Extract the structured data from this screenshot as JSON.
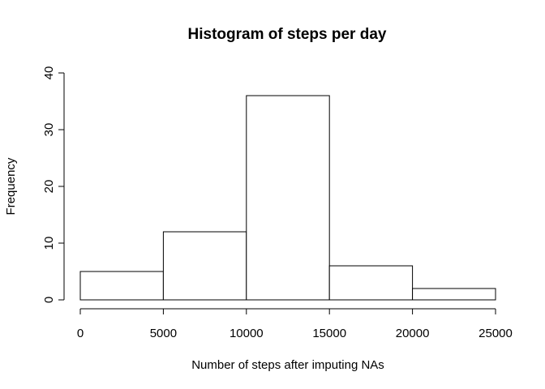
{
  "chart_data": {
    "type": "bar",
    "histogram": true,
    "title": "Histogram of steps per day",
    "xlabel": "Number of steps after imputing NAs",
    "ylabel": "Frequency",
    "bins": [
      {
        "start": 0,
        "end": 5000,
        "count": 5
      },
      {
        "start": 5000,
        "end": 10000,
        "count": 12
      },
      {
        "start": 10000,
        "end": 15000,
        "count": 36
      },
      {
        "start": 15000,
        "end": 20000,
        "count": 6
      },
      {
        "start": 20000,
        "end": 25000,
        "count": 2
      }
    ],
    "x_ticks": [
      "0",
      "5000",
      "10000",
      "15000",
      "20000",
      "25000"
    ],
    "y_ticks": [
      "0",
      "10",
      "20",
      "30",
      "40"
    ],
    "xlim": [
      0,
      25000
    ],
    "ylim": [
      0,
      40
    ],
    "grid": false,
    "legend": "none",
    "colors": {
      "bar_fill": "#ffffff",
      "bar_stroke": "#000000"
    }
  }
}
